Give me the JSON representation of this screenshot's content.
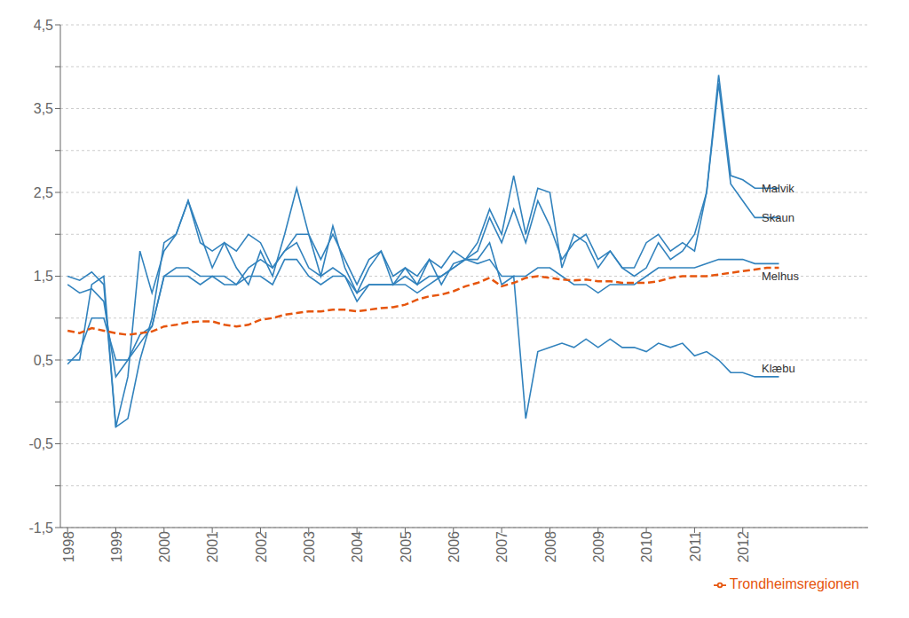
{
  "chart_data": {
    "type": "line",
    "x": [
      1998,
      1998.25,
      1998.5,
      1998.75,
      1999,
      1999.25,
      1999.5,
      1999.75,
      2000,
      2000.25,
      2000.5,
      2000.75,
      2001,
      2001.25,
      2001.5,
      2001.75,
      2002,
      2002.25,
      2002.5,
      2002.75,
      2003,
      2003.25,
      2003.5,
      2003.75,
      2004,
      2004.25,
      2004.5,
      2004.75,
      2005,
      2005.25,
      2005.5,
      2005.75,
      2006,
      2006.25,
      2006.5,
      2006.75,
      2007,
      2007.25,
      2007.5,
      2007.75,
      2008,
      2008.25,
      2008.5,
      2008.75,
      2009,
      2009.25,
      2009.5,
      2009.75,
      2010,
      2010.25,
      2010.5,
      2010.75,
      2011,
      2011.25,
      2011.5,
      2011.75,
      2012,
      2012.25,
      2012.5,
      2012.75
    ],
    "series": [
      {
        "values": [
          1.5,
          1.45,
          1.55,
          1.4,
          -0.3,
          0.3,
          1.8,
          1.3,
          1.8,
          2.0,
          2.4,
          1.9,
          1.8,
          1.9,
          1.6,
          1.4,
          1.8,
          1.5,
          2.0,
          2.55,
          2.0,
          1.5,
          2.1,
          1.6,
          1.3,
          1.6,
          1.8,
          1.4,
          1.6,
          1.4,
          1.7,
          1.4,
          1.65,
          1.7,
          1.9,
          2.3,
          2.0,
          2.7,
          2.0,
          2.55,
          2.5,
          1.6,
          2.0,
          1.9,
          1.6,
          1.8,
          1.6,
          1.5,
          1.6,
          1.9,
          1.7,
          1.8,
          2.0,
          2.5,
          3.9,
          2.7,
          2.65,
          2.55,
          2.55,
          2.55
        ]
      },
      {
        "values": [
          0.5,
          0.5,
          1.4,
          1.5,
          -0.3,
          -0.2,
          0.5,
          1.0,
          1.9,
          2.0,
          2.4,
          2.0,
          1.6,
          1.9,
          1.8,
          2.0,
          1.9,
          1.6,
          1.8,
          2.0,
          2.0,
          1.7,
          2.0,
          1.7,
          1.4,
          1.7,
          1.8,
          1.5,
          1.6,
          1.5,
          1.7,
          1.6,
          1.8,
          1.7,
          1.8,
          2.2,
          1.9,
          2.3,
          1.9,
          2.4,
          2.1,
          1.7,
          1.9,
          2.0,
          1.7,
          1.8,
          1.6,
          1.6,
          1.9,
          2.0,
          1.8,
          1.9,
          1.8,
          2.5,
          3.8,
          2.6,
          2.4,
          2.2,
          2.2,
          2.2
        ]
      },
      {
        "values": [
          1.4,
          1.3,
          1.35,
          1.2,
          0.3,
          0.5,
          0.8,
          0.9,
          1.5,
          1.5,
          1.5,
          1.4,
          1.5,
          1.4,
          1.4,
          1.5,
          1.5,
          1.4,
          1.7,
          1.7,
          1.5,
          1.4,
          1.5,
          1.5,
          1.2,
          1.4,
          1.4,
          1.4,
          1.4,
          1.3,
          1.4,
          1.5,
          1.6,
          1.7,
          1.65,
          1.7,
          1.5,
          1.5,
          1.5,
          1.6,
          1.6,
          1.5,
          1.4,
          1.4,
          1.3,
          1.4,
          1.4,
          1.4,
          1.5,
          1.6,
          1.6,
          1.6,
          1.6,
          1.65,
          1.7,
          1.7,
          1.7,
          1.65,
          1.65,
          1.65
        ]
      },
      {
        "values": [
          0.45,
          0.6,
          1.0,
          1.0,
          0.5,
          0.5,
          0.7,
          0.9,
          1.5,
          1.6,
          1.6,
          1.5,
          1.5,
          1.5,
          1.4,
          1.6,
          1.7,
          1.6,
          1.8,
          1.9,
          1.6,
          1.5,
          1.6,
          1.5,
          1.3,
          1.4,
          1.4,
          1.4,
          1.5,
          1.4,
          1.5,
          1.5,
          1.6,
          1.7,
          1.7,
          1.9,
          1.4,
          1.5,
          -0.2,
          0.6,
          0.65,
          0.7,
          0.65,
          0.75,
          0.65,
          0.75,
          0.65,
          0.65,
          0.6,
          0.7,
          0.65,
          0.7,
          0.55,
          0.6,
          0.5,
          0.35,
          0.35,
          0.3,
          0.3,
          0.3
        ]
      },
      {
        "name": "Trondheimsregionen",
        "line_style": "dashed",
        "values": [
          0.85,
          0.82,
          0.88,
          0.85,
          0.82,
          0.8,
          0.82,
          0.84,
          0.9,
          0.92,
          0.95,
          0.96,
          0.96,
          0.92,
          0.9,
          0.92,
          0.98,
          1.0,
          1.04,
          1.06,
          1.08,
          1.08,
          1.1,
          1.1,
          1.08,
          1.1,
          1.12,
          1.13,
          1.16,
          1.22,
          1.26,
          1.28,
          1.32,
          1.38,
          1.42,
          1.48,
          1.38,
          1.42,
          1.48,
          1.5,
          1.48,
          1.46,
          1.45,
          1.46,
          1.44,
          1.44,
          1.42,
          1.42,
          1.42,
          1.44,
          1.48,
          1.5,
          1.5,
          1.5,
          1.52,
          1.54,
          1.56,
          1.58,
          1.6,
          1.6
        ]
      }
    ],
    "annotations": [
      {
        "text": "Malvik",
        "x": 2012.3,
        "y": 2.55
      },
      {
        "text": "Skaun",
        "x": 2012.3,
        "y": 2.2
      },
      {
        "text": "Melhus",
        "x": 2012.3,
        "y": 1.5
      },
      {
        "text": "Klæbu",
        "x": 2012.3,
        "y": 0.4
      }
    ],
    "xlim": [
      1997.85,
      2014.6
    ],
    "xticks": [
      1998,
      1999,
      2000,
      2001,
      2002,
      2003,
      2004,
      2005,
      2006,
      2007,
      2008,
      2009,
      2010,
      2011,
      2012
    ],
    "ylim": [
      -1.5,
      4.5
    ],
    "yticks": [
      {
        "value": -1.5,
        "label": "-1,5"
      },
      {
        "value": -1.0,
        "label": ""
      },
      {
        "value": -0.5,
        "label": "-0,5"
      },
      {
        "value": 0,
        "label": ""
      },
      {
        "value": 0.5,
        "label": "0,5"
      },
      {
        "value": 1.0,
        "label": ""
      },
      {
        "value": 1.5,
        "label": "1,5"
      },
      {
        "value": 2.0,
        "label": ""
      },
      {
        "value": 2.5,
        "label": "2,5"
      },
      {
        "value": 3.0,
        "label": ""
      },
      {
        "value": 3.5,
        "label": "3,5"
      },
      {
        "value": 4.0,
        "label": ""
      },
      {
        "value": 4.5,
        "label": "4,5"
      }
    ],
    "grid": true,
    "legend": "lower right"
  }
}
